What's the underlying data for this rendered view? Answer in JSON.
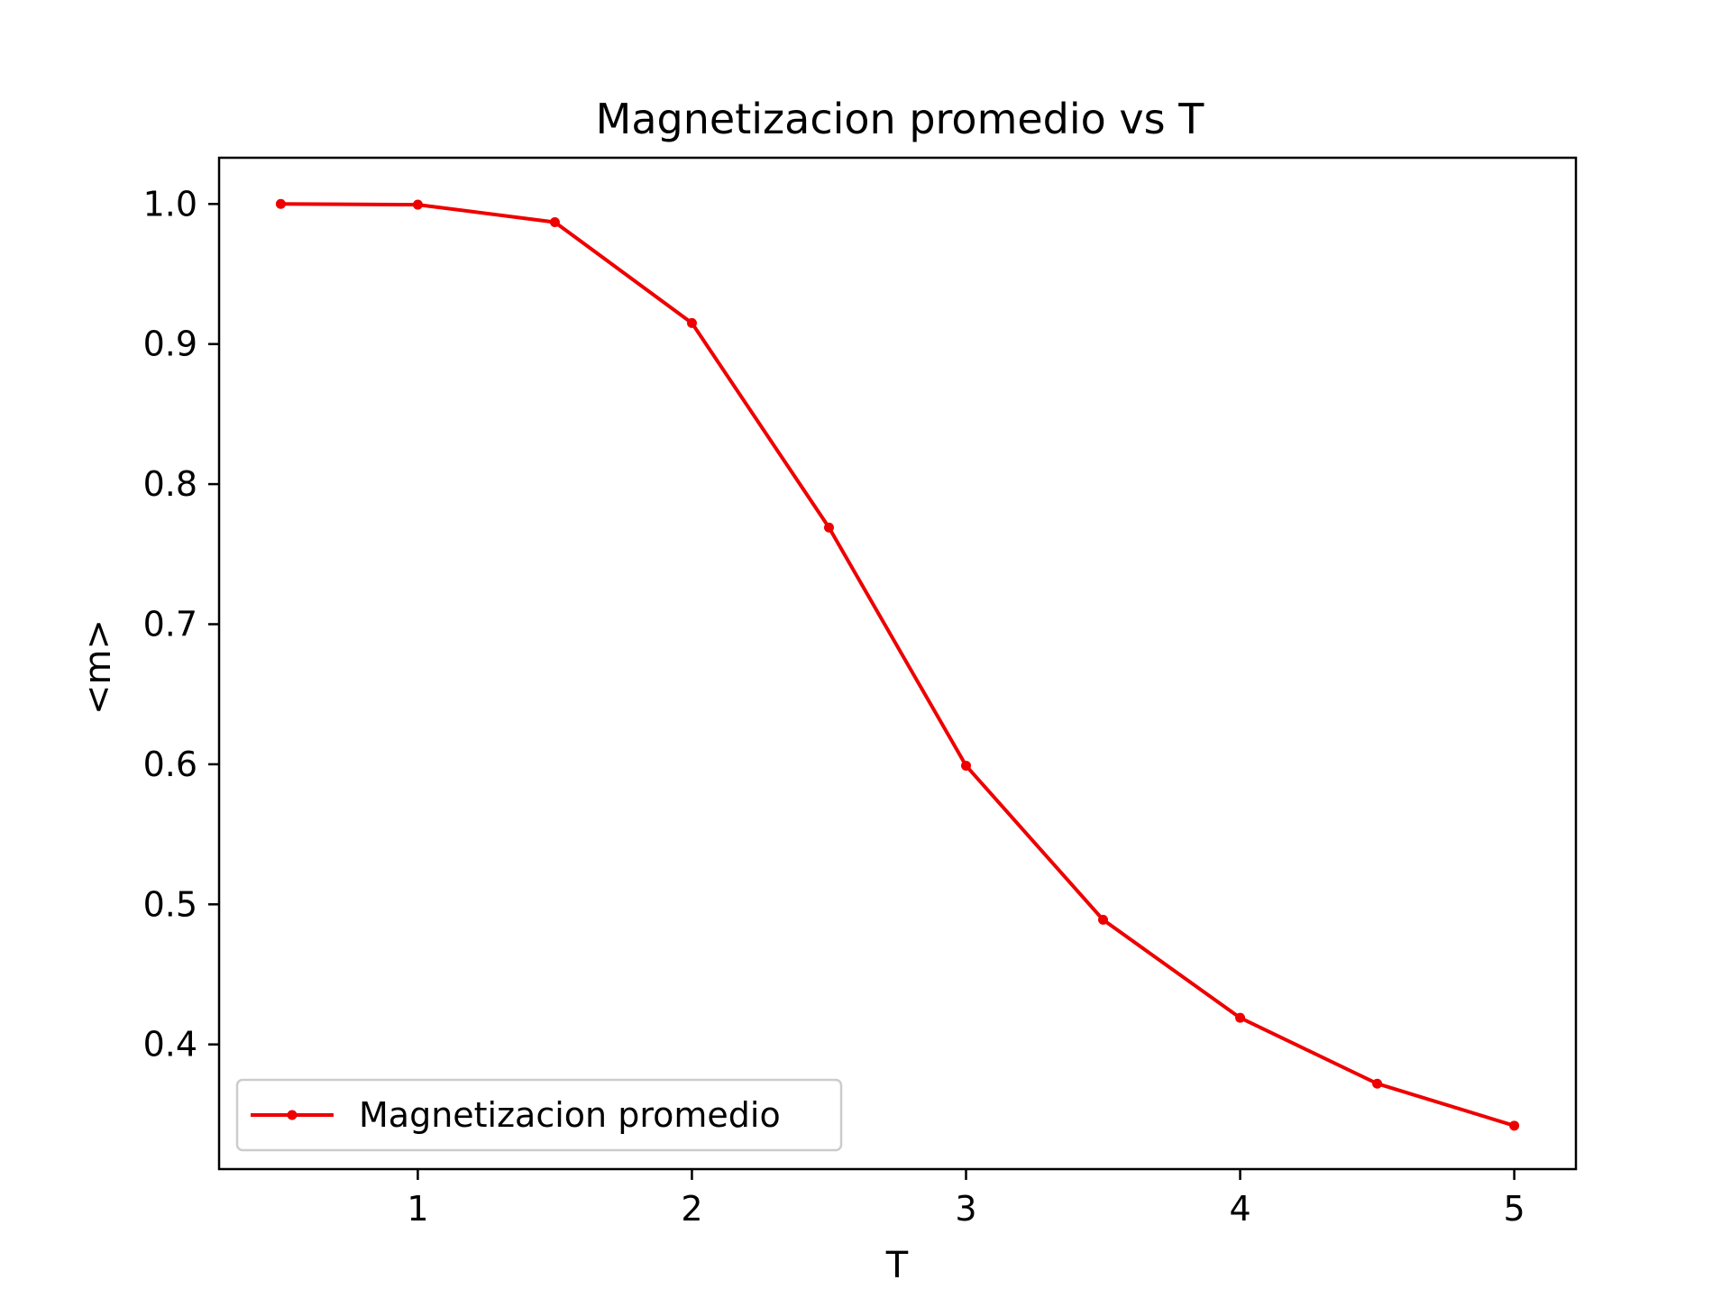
{
  "chart_data": {
    "type": "line",
    "title": "Magnetizacion promedio vs T",
    "xlabel": "T",
    "ylabel": "<m>",
    "x": [
      0.5,
      1.0,
      1.5,
      2.0,
      2.5,
      3.0,
      3.5,
      4.0,
      4.5,
      5.0
    ],
    "series": [
      {
        "name": "Magnetizacion promedio",
        "color": "#ee0000",
        "marker": "dot",
        "values": [
          1.0,
          0.9995,
          0.987,
          0.915,
          0.769,
          0.599,
          0.489,
          0.419,
          0.372,
          0.342
        ]
      }
    ],
    "xlim": [
      0.275,
      5.225
    ],
    "ylim": [
      0.311,
      1.033
    ],
    "xticks": [
      1,
      2,
      3,
      4,
      5
    ],
    "xtick_labels": [
      "1",
      "2",
      "3",
      "4",
      "5"
    ],
    "yticks": [
      0.4,
      0.5,
      0.6,
      0.7,
      0.8,
      0.9,
      1.0
    ],
    "ytick_labels": [
      "0.4",
      "0.5",
      "0.6",
      "0.7",
      "0.8",
      "0.9",
      "1.0"
    ],
    "grid": false,
    "legend_position": "lower-left"
  }
}
